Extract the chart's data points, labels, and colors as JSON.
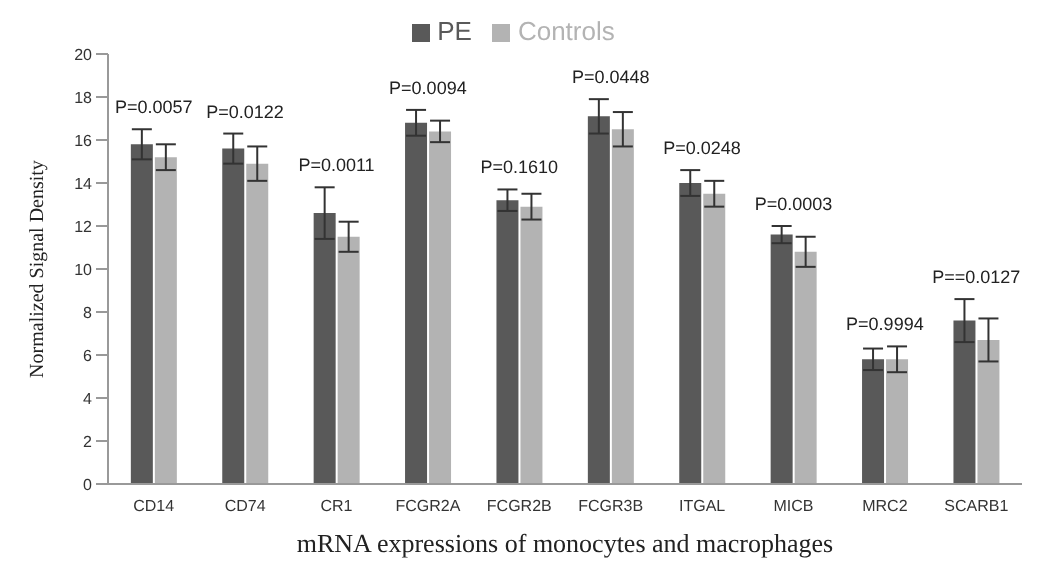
{
  "chart_data": {
    "type": "bar",
    "xlabel": "mRNA expressions of monocytes and macrophages",
    "ylabel": "Normalized Signal Density",
    "categories": [
      "CD14",
      "CD74",
      "CR1",
      "FCGR2A",
      "FCGR2B",
      "FCGR3B",
      "ITGAL",
      "MICB",
      "MRC2",
      "SCARB1"
    ],
    "series": [
      {
        "name": "PE",
        "color": "#595959",
        "values": [
          15.8,
          15.6,
          12.6,
          16.8,
          13.2,
          17.1,
          14.0,
          11.6,
          5.8,
          7.6
        ],
        "errors": [
          0.7,
          0.7,
          1.2,
          0.6,
          0.5,
          0.8,
          0.6,
          0.4,
          0.5,
          1.0
        ]
      },
      {
        "name": "Controls",
        "color": "#b3b3b3",
        "values": [
          15.2,
          14.9,
          11.5,
          16.4,
          12.9,
          16.5,
          13.5,
          10.8,
          5.8,
          6.7
        ],
        "errors": [
          0.6,
          0.8,
          0.7,
          0.5,
          0.6,
          0.8,
          0.6,
          0.7,
          0.6,
          1.0
        ]
      }
    ],
    "ylim": [
      0,
      20
    ],
    "yticks": [
      0,
      2,
      4,
      6,
      8,
      10,
      12,
      14,
      16,
      18,
      20
    ],
    "grid": false,
    "legend": "top",
    "annotations": [
      "P=0.0057",
      "P=0.0122",
      "P=0.0011",
      "P=0.0094",
      "P=0.1610",
      "P=0.0448",
      "P=0.0248",
      "P=0.0003",
      "P=0.9994",
      "P==0.0127"
    ]
  }
}
